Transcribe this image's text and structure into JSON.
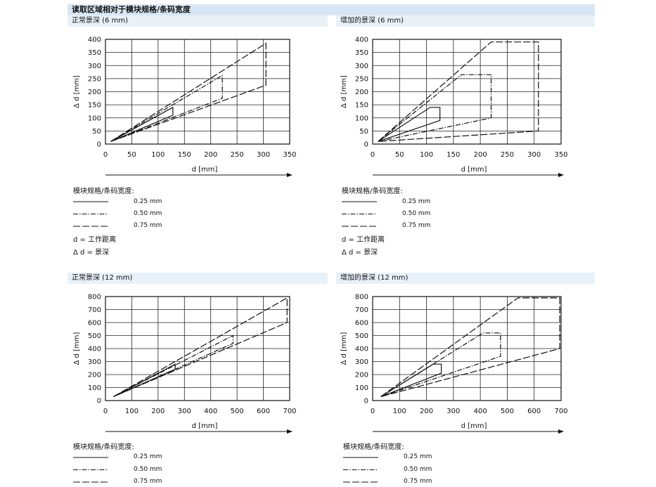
{
  "header": {
    "title": "读取区域相对于模块规格/条码宽度"
  },
  "legend": {
    "title": "模块规格/条码宽度:",
    "items": [
      "0.25 mm",
      "0.50 mm",
      "0.75 mm"
    ],
    "note_d": "d = 工作距离",
    "note_delta": "Δ d = 景深"
  },
  "chart_data": [
    {
      "type": "line",
      "title": "正常景深 (6 mm)",
      "xlabel": "d [mm]",
      "ylabel": "Δ d [mm]",
      "xlim": [
        0,
        350
      ],
      "ylim": [
        0,
        400
      ],
      "xticks": [
        0,
        50,
        100,
        150,
        200,
        250,
        300,
        350
      ],
      "yticks": [
        0,
        50,
        100,
        150,
        200,
        250,
        300,
        350,
        400
      ],
      "grid": true,
      "series": [
        {
          "name": "0.25 mm",
          "style": "solid",
          "x": [
            10,
            128,
            128,
            10
          ],
          "y": [
            10,
            140,
            110,
            10
          ]
        },
        {
          "name": "0.50 mm",
          "style": "dashdot",
          "x": [
            10,
            222,
            222,
            10
          ],
          "y": [
            10,
            262,
            175,
            10
          ]
        },
        {
          "name": "0.75 mm",
          "style": "dash",
          "x": [
            10,
            305,
            305,
            10
          ],
          "y": [
            10,
            385,
            225,
            10
          ]
        }
      ]
    },
    {
      "type": "line",
      "title": "增加的景深 (6 mm)",
      "xlabel": "d [mm]",
      "ylabel": "Δ d [mm]",
      "xlim": [
        0,
        350
      ],
      "ylim": [
        0,
        400
      ],
      "xticks": [
        0,
        50,
        100,
        150,
        200,
        250,
        300,
        350
      ],
      "yticks": [
        0,
        50,
        100,
        150,
        200,
        250,
        300,
        350,
        400
      ],
      "grid": true,
      "series": [
        {
          "name": "0.25 mm",
          "style": "solid",
          "x": [
            10,
            107,
            125,
            125,
            10
          ],
          "y": [
            10,
            140,
            140,
            90,
            10
          ]
        },
        {
          "name": "0.50 mm",
          "style": "dashdot",
          "x": [
            10,
            165,
            220,
            220,
            10
          ],
          "y": [
            10,
            265,
            265,
            100,
            10
          ]
        },
        {
          "name": "0.75 mm",
          "style": "dash",
          "x": [
            10,
            220,
            308,
            308,
            10
          ],
          "y": [
            10,
            390,
            390,
            50,
            10
          ]
        }
      ]
    },
    {
      "type": "line",
      "title": "正常景深 (12 mm)",
      "xlabel": "d [mm]",
      "ylabel": "Δ d [mm]",
      "xlim": [
        0,
        700
      ],
      "ylim": [
        0,
        800
      ],
      "xticks": [
        0,
        100,
        200,
        300,
        400,
        500,
        600,
        700
      ],
      "yticks": [
        0,
        100,
        200,
        300,
        400,
        500,
        600,
        700,
        800
      ],
      "grid": true,
      "series": [
        {
          "name": "0.25 mm",
          "style": "solid",
          "x": [
            30,
            265,
            265,
            30
          ],
          "y": [
            30,
            280,
            240,
            30
          ]
        },
        {
          "name": "0.50 mm",
          "style": "dashdot",
          "x": [
            30,
            485,
            485,
            30
          ],
          "y": [
            30,
            500,
            440,
            30
          ]
        },
        {
          "name": "0.75 mm",
          "style": "dash",
          "x": [
            30,
            690,
            690,
            30
          ],
          "y": [
            30,
            790,
            600,
            30
          ]
        }
      ]
    },
    {
      "type": "line",
      "title": "增加的景深 (12 mm)",
      "xlabel": "d [mm]",
      "ylabel": "Δ d [mm]",
      "xlim": [
        0,
        700
      ],
      "ylim": [
        0,
        800
      ],
      "xticks": [
        0,
        100,
        200,
        300,
        400,
        500,
        600,
        700
      ],
      "yticks": [
        0,
        100,
        200,
        300,
        400,
        500,
        600,
        700,
        800
      ],
      "grid": true,
      "series": [
        {
          "name": "0.25 mm",
          "style": "solid",
          "x": [
            30,
            225,
            255,
            255,
            30
          ],
          "y": [
            30,
            280,
            280,
            210,
            30
          ]
        },
        {
          "name": "0.50 mm",
          "style": "dashdot",
          "x": [
            30,
            410,
            475,
            475,
            30
          ],
          "y": [
            30,
            520,
            520,
            340,
            30
          ]
        },
        {
          "name": "0.75 mm",
          "style": "dash",
          "x": [
            30,
            540,
            695,
            695,
            30
          ],
          "y": [
            30,
            790,
            790,
            400,
            30
          ]
        }
      ]
    }
  ]
}
